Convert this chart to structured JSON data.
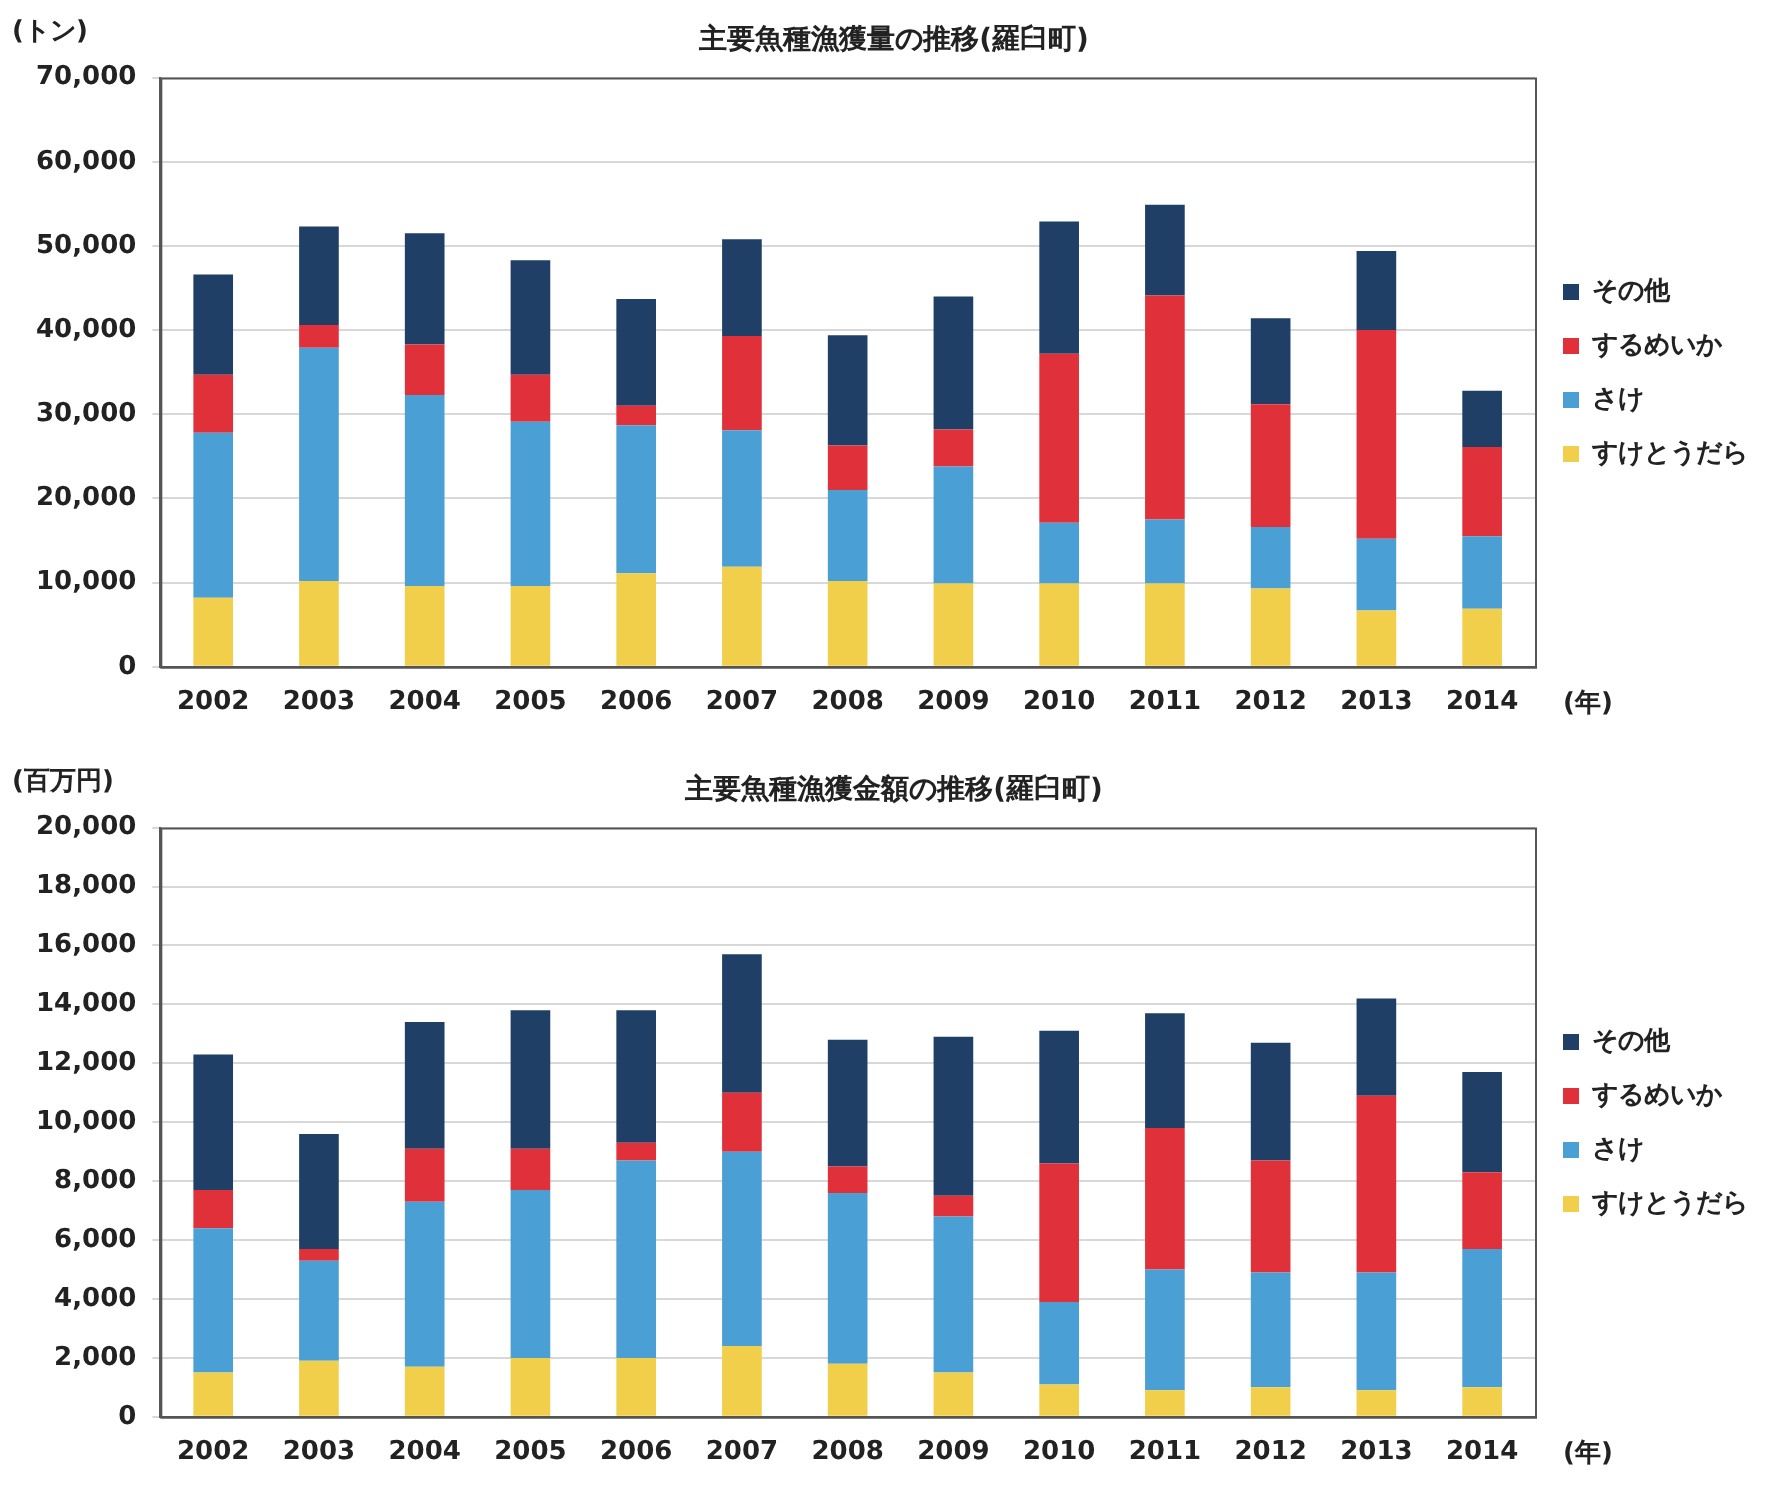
{
  "chart_data": [
    {
      "type": "bar",
      "title": "主要魚種漁獲量の推移(羅臼町)",
      "ylabel": "(トン)",
      "xlabel": "(年)",
      "categories": [
        "2002",
        "2003",
        "2004",
        "2005",
        "2006",
        "2007",
        "2008",
        "2009",
        "2010",
        "2011",
        "2012",
        "2013",
        "2014"
      ],
      "stacked": true,
      "grid": "y",
      "legend": "right",
      "ylim": [
        0,
        70000
      ],
      "yticks": [
        {
          "value": 0,
          "label": "0"
        },
        {
          "value": 10000,
          "label": "10,000"
        },
        {
          "value": 20000,
          "label": "20,000"
        },
        {
          "value": 30000,
          "label": "30,000"
        },
        {
          "value": 40000,
          "label": "40,000"
        },
        {
          "value": 50000,
          "label": "50,000"
        },
        {
          "value": 60000,
          "label": "60,000"
        },
        {
          "value": 70000,
          "label": "70,000"
        }
      ],
      "series": [
        {
          "name": "すけとうだら",
          "color": "#f2cf4a",
          "values": [
            8200,
            10200,
            9600,
            9600,
            11100,
            11900,
            10200,
            9900,
            9900,
            9900,
            9300,
            6700,
            6900
          ]
        },
        {
          "name": "さけ",
          "color": "#4a9fd4",
          "values": [
            19600,
            27700,
            22700,
            19500,
            17600,
            16200,
            10800,
            13900,
            7200,
            7600,
            7300,
            8500,
            8600
          ]
        },
        {
          "name": "するめいか",
          "color": "#e0303a",
          "values": [
            6900,
            2700,
            6000,
            5600,
            2300,
            11200,
            5300,
            4400,
            20100,
            26600,
            14600,
            24800,
            10600
          ]
        },
        {
          "name": "その他",
          "color": "#1f3f66",
          "values": [
            11900,
            11700,
            13200,
            13600,
            12700,
            11500,
            13100,
            15800,
            15700,
            10800,
            10200,
            9400,
            6700
          ]
        }
      ]
    },
    {
      "type": "bar",
      "title": "主要魚種漁獲金額の推移(羅臼町)",
      "ylabel": "(百万円)",
      "xlabel": "(年)",
      "categories": [
        "2002",
        "2003",
        "2004",
        "2005",
        "2006",
        "2007",
        "2008",
        "2009",
        "2010",
        "2011",
        "2012",
        "2013",
        "2014"
      ],
      "stacked": true,
      "grid": "y",
      "legend": "right",
      "ylim": [
        0,
        20000
      ],
      "yticks": [
        {
          "value": 0,
          "label": "0"
        },
        {
          "value": 2000,
          "label": "2,000"
        },
        {
          "value": 4000,
          "label": "4,000"
        },
        {
          "value": 6000,
          "label": "6,000"
        },
        {
          "value": 8000,
          "label": "8,000"
        },
        {
          "value": 10000,
          "label": "10,000"
        },
        {
          "value": 12000,
          "label": "12,000"
        },
        {
          "value": 14000,
          "label": "14,000"
        },
        {
          "value": 16000,
          "label": "16,000"
        },
        {
          "value": 18000,
          "label": "18,000"
        },
        {
          "value": 20000,
          "label": "20,000"
        }
      ],
      "series": [
        {
          "name": "すけとうだら",
          "color": "#f2cf4a",
          "values": [
            1500,
            1900,
            1700,
            2000,
            2000,
            2400,
            1800,
            1500,
            1100,
            900,
            1000,
            900,
            1000
          ]
        },
        {
          "name": "さけ",
          "color": "#4a9fd4",
          "values": [
            4900,
            3400,
            5600,
            5700,
            6700,
            6600,
            5800,
            5300,
            2800,
            4100,
            3900,
            4000,
            4700
          ]
        },
        {
          "name": "するめいか",
          "color": "#e0303a",
          "values": [
            1300,
            400,
            1800,
            1400,
            600,
            2000,
            900,
            700,
            4700,
            4800,
            3800,
            6000,
            2600
          ]
        },
        {
          "name": "その他",
          "color": "#1f3f66",
          "values": [
            4600,
            3900,
            4300,
            4700,
            4500,
            4700,
            4300,
            5400,
            4500,
            3900,
            4000,
            3300,
            3400
          ]
        }
      ]
    }
  ]
}
